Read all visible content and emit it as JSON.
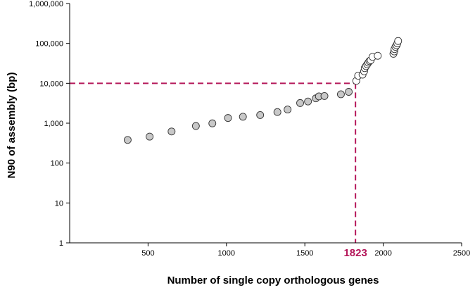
{
  "chart_data": {
    "type": "scatter",
    "title": "",
    "xlabel": "Number of single copy orthologous genes",
    "ylabel": "N90 of assembly (bp)",
    "xlim": [
      0,
      2500
    ],
    "ylim": [
      1,
      1000000
    ],
    "yscale": "log",
    "x_ticks": [
      500,
      1000,
      1500,
      2000,
      2500
    ],
    "x_tick_labels": [
      "500",
      "1000",
      "1500",
      "2000",
      "2500"
    ],
    "y_ticks": [
      1,
      10,
      100,
      1000,
      10000,
      100000,
      1000000
    ],
    "y_tick_labels": [
      "1",
      "10",
      "100",
      "1,000",
      "10,000",
      "100,000",
      "1,000,000"
    ],
    "grid": false,
    "threshold": {
      "x": 1823,
      "y": 10000,
      "label": "1823",
      "color": "#b5175a"
    },
    "series": [
      {
        "style": "grey-filled",
        "fill": "#c8c8c8",
        "points": [
          [
            370,
            380
          ],
          [
            510,
            460
          ],
          [
            650,
            620
          ],
          [
            805,
            850
          ],
          [
            910,
            990
          ],
          [
            1010,
            1350
          ],
          [
            1105,
            1450
          ],
          [
            1215,
            1600
          ],
          [
            1325,
            1900
          ],
          [
            1390,
            2200
          ],
          [
            1470,
            3200
          ],
          [
            1520,
            3500
          ],
          [
            1570,
            4200
          ],
          [
            1590,
            4700
          ],
          [
            1625,
            4800
          ],
          [
            1730,
            5300
          ],
          [
            1780,
            6100
          ]
        ]
      },
      {
        "style": "white-open",
        "fill": "#ffffff",
        "points": [
          [
            1828,
            11500
          ],
          [
            1840,
            15500
          ],
          [
            1868,
            16500
          ],
          [
            1878,
            20000
          ],
          [
            1882,
            24000
          ],
          [
            1890,
            27000
          ],
          [
            1898,
            30000
          ],
          [
            1905,
            33000
          ],
          [
            1912,
            36000
          ],
          [
            1920,
            38000
          ],
          [
            1932,
            46000
          ],
          [
            1965,
            49000
          ],
          [
            2065,
            55000
          ],
          [
            2070,
            63000
          ],
          [
            2072,
            72000
          ],
          [
            2078,
            82000
          ],
          [
            2085,
            90000
          ],
          [
            2090,
            100000
          ],
          [
            2095,
            115000
          ]
        ]
      }
    ]
  }
}
